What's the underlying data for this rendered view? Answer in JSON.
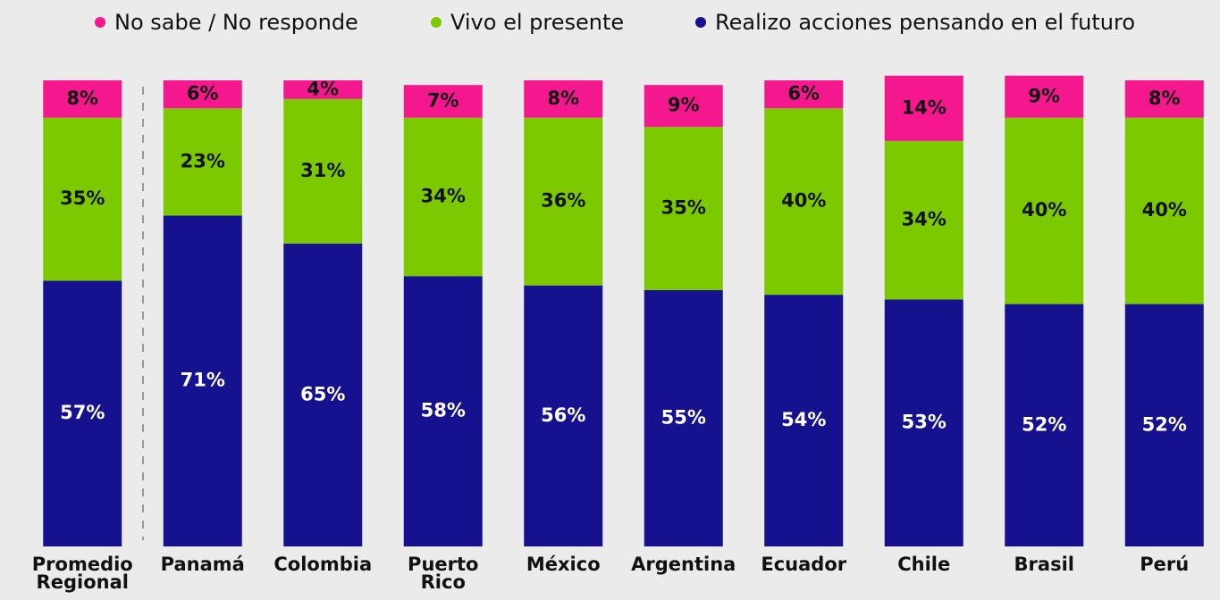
{
  "chart_data": {
    "type": "stacked_bar",
    "categories": [
      "Promedio Regional",
      "Panamá",
      "Colombia",
      "Puerto Rico",
      "México",
      "Argentina",
      "Ecuador",
      "Chile",
      "Brasil",
      "Perú"
    ],
    "series": [
      {
        "name": "Realizo acciones pensando en el futuro",
        "color": "#16118f",
        "values": [
          57,
          71,
          65,
          58,
          56,
          55,
          54,
          53,
          52,
          52
        ],
        "value_labels": [
          "57%",
          "71%",
          "65%",
          "58%",
          "56%",
          "55%",
          "54%",
          "53%",
          "52%",
          "52%"
        ]
      },
      {
        "name": "Vivo el presente",
        "color": "#7dc900",
        "values": [
          35,
          23,
          31,
          34,
          36,
          35,
          40,
          34,
          40,
          40
        ],
        "value_labels": [
          "35%",
          "23%",
          "31%",
          "34%",
          "36%",
          "35%",
          "40%",
          "34%",
          "40%",
          "40%"
        ]
      },
      {
        "name": "No sabe / No responde",
        "color": "#f5178e",
        "values": [
          8,
          6,
          4,
          7,
          8,
          9,
          6,
          14,
          9,
          8
        ],
        "value_labels": [
          "8%",
          "6%",
          "4%",
          "7%",
          "8%",
          "9%",
          "6%",
          "14%",
          "9%",
          "8%"
        ]
      }
    ],
    "ylim": [
      0,
      100
    ]
  }
}
